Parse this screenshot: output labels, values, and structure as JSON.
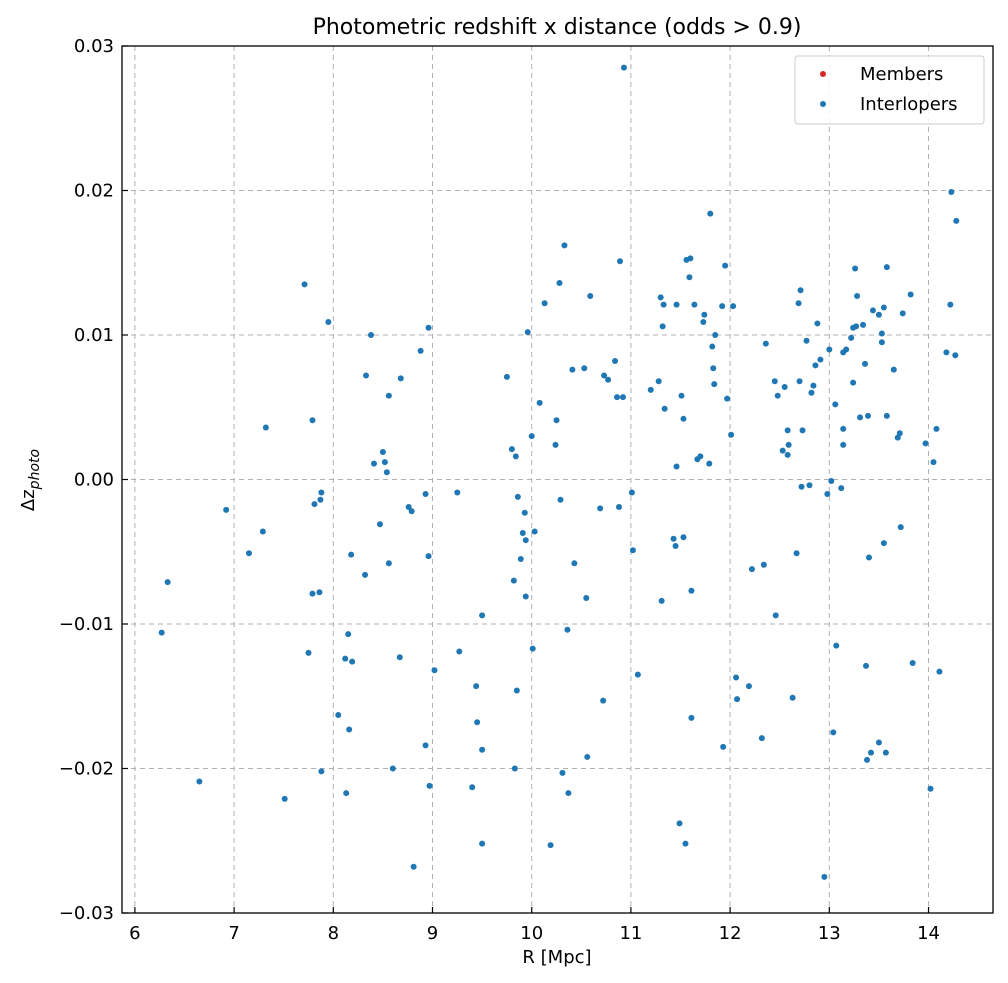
{
  "chart_data": {
    "type": "scatter",
    "title": "Photometric redshift x distance (odds > 0.9)",
    "xlabel": "R [Mpc]",
    "ylabel_main": "Δz",
    "ylabel_sub": "photo",
    "xlim": [
      5.87,
      14.65
    ],
    "ylim": [
      -0.03,
      0.03
    ],
    "xticks": [
      6,
      7,
      8,
      9,
      10,
      11,
      12,
      13,
      14
    ],
    "yticks": [
      -0.03,
      -0.02,
      -0.01,
      0.0,
      0.01,
      0.02,
      0.03
    ],
    "ytick_labels": [
      "−0.03",
      "−0.02",
      "−0.01",
      "0.00",
      "0.01",
      "0.02",
      "0.03"
    ],
    "grid": true,
    "legend_position": "top-right",
    "series": [
      {
        "name": "Members",
        "color": "#d62728",
        "points": []
      },
      {
        "name": "Interlopers",
        "color": "#1f77b4",
        "points": [
          [
            6.27,
            -0.0106
          ],
          [
            6.33,
            -0.0071
          ],
          [
            6.65,
            -0.0209
          ],
          [
            6.92,
            -0.0021
          ],
          [
            7.15,
            -0.0051
          ],
          [
            7.29,
            -0.0036
          ],
          [
            7.32,
            0.0036
          ],
          [
            7.51,
            -0.0221
          ],
          [
            7.71,
            0.0135
          ],
          [
            7.75,
            -0.012
          ],
          [
            7.79,
            -0.0079
          ],
          [
            7.79,
            0.0041
          ],
          [
            7.81,
            -0.0017
          ],
          [
            7.86,
            -0.0078
          ],
          [
            7.87,
            -0.0014
          ],
          [
            7.88,
            -0.0009
          ],
          [
            7.88,
            -0.0202
          ],
          [
            7.95,
            0.0109
          ],
          [
            8.05,
            -0.0163
          ],
          [
            8.12,
            -0.0124
          ],
          [
            8.13,
            -0.0217
          ],
          [
            8.15,
            -0.0107
          ],
          [
            8.16,
            -0.0173
          ],
          [
            8.18,
            -0.0052
          ],
          [
            8.19,
            -0.0126
          ],
          [
            8.32,
            -0.0066
          ],
          [
            8.33,
            0.0072
          ],
          [
            8.38,
            0.01
          ],
          [
            8.41,
            0.0011
          ],
          [
            8.47,
            -0.0031
          ],
          [
            8.5,
            0.0019
          ],
          [
            8.52,
            0.0012
          ],
          [
            8.54,
            0.0005
          ],
          [
            8.56,
            -0.0058
          ],
          [
            8.56,
            0.0058
          ],
          [
            8.6,
            -0.02
          ],
          [
            8.67,
            -0.0123
          ],
          [
            8.68,
            0.007
          ],
          [
            8.76,
            -0.0019
          ],
          [
            8.79,
            -0.0022
          ],
          [
            8.81,
            -0.0268
          ],
          [
            8.88,
            0.0089
          ],
          [
            8.93,
            -0.0184
          ],
          [
            8.93,
            -0.001
          ],
          [
            8.96,
            -0.0053
          ],
          [
            8.96,
            0.0105
          ],
          [
            8.97,
            -0.0212
          ],
          [
            9.02,
            -0.0132
          ],
          [
            9.25,
            -0.0009
          ],
          [
            9.27,
            -0.0119
          ],
          [
            9.4,
            -0.0213
          ],
          [
            9.44,
            -0.0143
          ],
          [
            9.45,
            -0.0168
          ],
          [
            9.5,
            -0.0094
          ],
          [
            9.5,
            -0.0187
          ],
          [
            9.5,
            -0.0252
          ],
          [
            9.75,
            0.0071
          ],
          [
            9.8,
            0.0021
          ],
          [
            9.82,
            -0.007
          ],
          [
            9.83,
            -0.02
          ],
          [
            9.84,
            0.0016
          ],
          [
            9.85,
            -0.0146
          ],
          [
            9.86,
            -0.0012
          ],
          [
            9.89,
            -0.0055
          ],
          [
            9.91,
            -0.0037
          ],
          [
            9.93,
            -0.0023
          ],
          [
            9.94,
            -0.0081
          ],
          [
            9.94,
            -0.0042
          ],
          [
            9.96,
            0.0102
          ],
          [
            10.0,
            0.003
          ],
          [
            10.01,
            -0.0117
          ],
          [
            10.03,
            -0.0036
          ],
          [
            10.08,
            0.0053
          ],
          [
            10.13,
            0.0122
          ],
          [
            10.19,
            -0.0253
          ],
          [
            10.24,
            0.0024
          ],
          [
            10.25,
            0.0041
          ],
          [
            10.28,
            0.0136
          ],
          [
            10.29,
            -0.0014
          ],
          [
            10.31,
            -0.0203
          ],
          [
            10.33,
            0.0162
          ],
          [
            10.36,
            -0.0104
          ],
          [
            10.37,
            -0.0217
          ],
          [
            10.41,
            0.0076
          ],
          [
            10.43,
            -0.0058
          ],
          [
            10.53,
            0.0077
          ],
          [
            10.55,
            -0.0082
          ],
          [
            10.56,
            -0.0192
          ],
          [
            10.59,
            0.0127
          ],
          [
            10.69,
            -0.002
          ],
          [
            10.72,
            -0.0153
          ],
          [
            10.73,
            0.0072
          ],
          [
            10.77,
            0.0069
          ],
          [
            10.84,
            0.0082
          ],
          [
            10.86,
            0.0057
          ],
          [
            10.88,
            -0.0019
          ],
          [
            10.89,
            0.0151
          ],
          [
            10.92,
            0.0057
          ],
          [
            10.93,
            0.0285
          ],
          [
            11.01,
            -0.0009
          ],
          [
            11.02,
            -0.0049
          ],
          [
            11.07,
            -0.0135
          ],
          [
            11.2,
            0.0062
          ],
          [
            11.28,
            0.0068
          ],
          [
            11.3,
            0.0126
          ],
          [
            11.31,
            -0.0084
          ],
          [
            11.32,
            0.0106
          ],
          [
            11.33,
            0.0121
          ],
          [
            11.34,
            0.0049
          ],
          [
            11.43,
            -0.0041
          ],
          [
            11.45,
            -0.0046
          ],
          [
            11.46,
            0.0009
          ],
          [
            11.46,
            0.0121
          ],
          [
            11.49,
            -0.0238
          ],
          [
            11.51,
            0.0058
          ],
          [
            11.53,
            -0.004
          ],
          [
            11.53,
            0.0042
          ],
          [
            11.55,
            -0.0252
          ],
          [
            11.56,
            0.0152
          ],
          [
            11.59,
            0.014
          ],
          [
            11.6,
            0.0153
          ],
          [
            11.61,
            -0.0077
          ],
          [
            11.61,
            -0.0165
          ],
          [
            11.64,
            0.0121
          ],
          [
            11.67,
            0.0014
          ],
          [
            11.7,
            0.0016
          ],
          [
            11.73,
            0.0109
          ],
          [
            11.74,
            0.0114
          ],
          [
            11.79,
            0.0011
          ],
          [
            11.8,
            0.0184
          ],
          [
            11.82,
            0.0092
          ],
          [
            11.83,
            0.0077
          ],
          [
            11.84,
            0.0066
          ],
          [
            11.85,
            0.01
          ],
          [
            11.92,
            0.012
          ],
          [
            11.93,
            -0.0185
          ],
          [
            11.95,
            0.0148
          ],
          [
            11.97,
            0.0056
          ],
          [
            12.01,
            0.0031
          ],
          [
            12.03,
            0.012
          ],
          [
            12.06,
            -0.0137
          ],
          [
            12.07,
            -0.0152
          ],
          [
            12.19,
            -0.0143
          ],
          [
            12.22,
            -0.0062
          ],
          [
            12.32,
            -0.0179
          ],
          [
            12.34,
            -0.0059
          ],
          [
            12.36,
            0.0094
          ],
          [
            12.45,
            0.0068
          ],
          [
            12.46,
            -0.0094
          ],
          [
            12.48,
            0.0058
          ],
          [
            12.53,
            0.002
          ],
          [
            12.55,
            0.0064
          ],
          [
            12.58,
            0.0034
          ],
          [
            12.58,
            0.0017
          ],
          [
            12.59,
            0.0024
          ],
          [
            12.63,
            -0.0151
          ],
          [
            12.67,
            -0.0051
          ],
          [
            12.69,
            0.0122
          ],
          [
            12.7,
            0.0068
          ],
          [
            12.71,
            0.0131
          ],
          [
            12.72,
            -0.0005
          ],
          [
            12.73,
            0.0034
          ],
          [
            12.77,
            0.0096
          ],
          [
            12.8,
            -0.0004
          ],
          [
            12.82,
            0.006
          ],
          [
            12.84,
            0.0065
          ],
          [
            12.86,
            0.0079
          ],
          [
            12.88,
            0.0108
          ],
          [
            12.91,
            0.0083
          ],
          [
            12.95,
            -0.0275
          ],
          [
            12.98,
            -0.001
          ],
          [
            13.0,
            0.009
          ],
          [
            13.02,
            -0.0001
          ],
          [
            13.04,
            -0.0175
          ],
          [
            13.06,
            0.0052
          ],
          [
            13.07,
            -0.0115
          ],
          [
            13.12,
            -0.0006
          ],
          [
            13.14,
            0.0024
          ],
          [
            13.14,
            0.0035
          ],
          [
            13.14,
            0.0088
          ],
          [
            13.17,
            0.009
          ],
          [
            13.22,
            0.0098
          ],
          [
            13.24,
            0.0067
          ],
          [
            13.24,
            0.0105
          ],
          [
            13.26,
            0.0146
          ],
          [
            13.27,
            0.0106
          ],
          [
            13.28,
            0.0127
          ],
          [
            13.31,
            0.0043
          ],
          [
            13.34,
            0.0107
          ],
          [
            13.36,
            0.008
          ],
          [
            13.37,
            -0.0129
          ],
          [
            13.38,
            -0.0194
          ],
          [
            13.39,
            0.0044
          ],
          [
            13.4,
            -0.0054
          ],
          [
            13.42,
            -0.0189
          ],
          [
            13.44,
            0.0117
          ],
          [
            13.5,
            -0.0182
          ],
          [
            13.5,
            0.0114
          ],
          [
            13.53,
            0.0101
          ],
          [
            13.53,
            0.0095
          ],
          [
            13.55,
            0.0119
          ],
          [
            13.55,
            -0.0044
          ],
          [
            13.57,
            -0.0189
          ],
          [
            13.58,
            0.0044
          ],
          [
            13.58,
            0.0147
          ],
          [
            13.65,
            0.0076
          ],
          [
            13.69,
            0.0029
          ],
          [
            13.71,
            0.0032
          ],
          [
            13.72,
            -0.0033
          ],
          [
            13.74,
            0.0115
          ],
          [
            13.82,
            0.0128
          ],
          [
            13.84,
            -0.0127
          ],
          [
            13.97,
            0.0025
          ],
          [
            14.02,
            -0.0214
          ],
          [
            14.05,
            0.0012
          ],
          [
            14.08,
            0.0035
          ],
          [
            14.11,
            -0.0133
          ],
          [
            14.18,
            0.0088
          ],
          [
            14.22,
            0.0121
          ],
          [
            14.23,
            0.0199
          ],
          [
            14.27,
            0.0086
          ],
          [
            14.28,
            0.0179
          ]
        ]
      }
    ]
  }
}
